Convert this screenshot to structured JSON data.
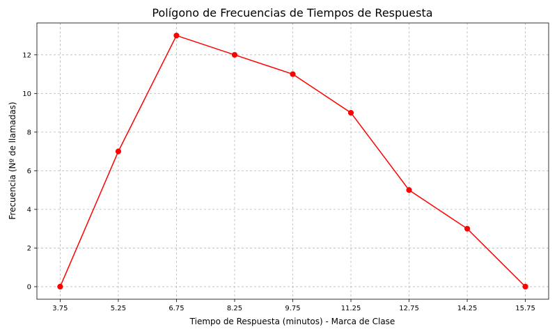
{
  "chart_data": {
    "type": "line",
    "title": "Polígono de Frecuencias de Tiempos de Respuesta",
    "xlabel": "Tiempo de Respuesta (minutos) - Marca de Clase",
    "ylabel": "Frecuencia (Nº de llamadas)",
    "x": [
      3.75,
      5.25,
      6.75,
      8.25,
      9.75,
      11.25,
      12.75,
      14.25,
      15.75
    ],
    "x_tick_labels": [
      "3.75",
      "5.25",
      "6.75",
      "8.25",
      "9.75",
      "11.25",
      "12.75",
      "14.25",
      "15.75"
    ],
    "values": [
      0,
      7,
      13,
      12,
      11,
      9,
      5,
      3,
      0
    ],
    "y_ticks": [
      0,
      2,
      4,
      6,
      8,
      10,
      12
    ],
    "xlim": [
      3.15,
      16.35
    ],
    "ylim": [
      -0.65,
      13.65
    ],
    "grid": true,
    "color": "#ff0000",
    "marker": "circle"
  }
}
